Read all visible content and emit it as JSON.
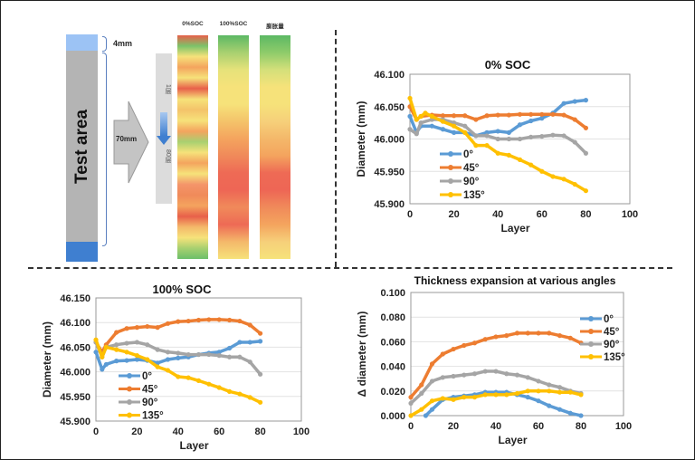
{
  "schematic": {
    "test_area_label": "Test area",
    "top_dim": "4mm",
    "length_dim": "70mm",
    "layer_start": "1层",
    "layer_end": "80层",
    "heat_strips": [
      {
        "label": "0%SOC",
        "colors": [
          "#e8604a",
          "#7cc36a",
          "#f6e27a",
          "#f4a45e",
          "#f6e27a",
          "#e8604a",
          "#f6e27a",
          "#f4c36a",
          "#f6e27a",
          "#f4a45e",
          "#a8d070",
          "#f6e27a",
          "#f4a45e",
          "#f6e27a",
          "#f4956a",
          "#f08a5a",
          "#f4a45e",
          "#e8604a",
          "#f4b86a",
          "#f6e27a",
          "#a8d070",
          "#6cbf6a"
        ]
      },
      {
        "label": "100%SOC",
        "colors": [
          "#5cb864",
          "#a8d070",
          "#e6e27a",
          "#f6e27a",
          "#f6e27a",
          "#f4c36a",
          "#f4a45e",
          "#f08a5a",
          "#ee6a55",
          "#ee6655",
          "#f08a5a",
          "#ee6a55",
          "#f4b86a",
          "#f6e27a"
        ]
      },
      {
        "label": "膨胀量",
        "colors": [
          "#5cb864",
          "#8ecb6a",
          "#d4e07a",
          "#f6e27a",
          "#f6e27a",
          "#f6d07a",
          "#f4b86a",
          "#f4a45e",
          "#ee6a55",
          "#ee6655",
          "#f08a5a",
          "#f4a45e",
          "#f6d07a",
          "#f6e27a"
        ]
      }
    ]
  },
  "chart_data": [
    {
      "type": "line",
      "title": "0% SOC",
      "xlabel": "Layer",
      "ylabel": "Diameter  (mm)",
      "xlim": [
        0,
        100
      ],
      "ylim": [
        45.9,
        46.1
      ],
      "xticks": [
        "0",
        "20",
        "40",
        "60",
        "80",
        "100"
      ],
      "yticks": [
        "45.900",
        "45.950",
        "46.000",
        "46.050",
        "46.100"
      ],
      "grid": true,
      "legend": "center-left",
      "series": [
        {
          "name": "0°",
          "color": "#5b9bd5",
          "x": [
            0,
            3,
            5,
            10,
            15,
            20,
            25,
            30,
            35,
            40,
            45,
            50,
            55,
            60,
            65,
            70,
            75,
            80
          ],
          "y": [
            46.035,
            46.01,
            46.02,
            46.02,
            46.015,
            46.01,
            46.01,
            46.005,
            46.01,
            46.012,
            46.01,
            46.022,
            46.028,
            46.032,
            46.04,
            46.055,
            46.058,
            46.06
          ]
        },
        {
          "name": "45°",
          "color": "#ed7d31",
          "x": [
            0,
            3,
            5,
            10,
            15,
            20,
            25,
            30,
            35,
            40,
            45,
            50,
            55,
            60,
            65,
            70,
            75,
            80
          ],
          "y": [
            46.05,
            46.03,
            46.035,
            46.037,
            46.036,
            46.036,
            46.036,
            46.03,
            46.036,
            46.037,
            46.037,
            46.038,
            46.038,
            46.038,
            46.038,
            46.037,
            46.03,
            46.017
          ]
        },
        {
          "name": "90°",
          "color": "#a5a5a5",
          "x": [
            0,
            3,
            5,
            10,
            15,
            20,
            25,
            30,
            35,
            40,
            45,
            50,
            55,
            60,
            65,
            70,
            75,
            80
          ],
          "y": [
            46.015,
            46.008,
            46.025,
            46.03,
            46.03,
            46.025,
            46.02,
            46.005,
            46.005,
            46.0,
            46.0,
            46.0,
            46.003,
            46.004,
            46.006,
            46.005,
            45.995,
            45.978
          ]
        },
        {
          "name": "135°",
          "color": "#ffc000",
          "x": [
            0,
            3,
            5,
            7,
            10,
            15,
            20,
            25,
            30,
            35,
            40,
            45,
            50,
            55,
            60,
            65,
            70,
            75,
            80
          ],
          "y": [
            46.063,
            46.03,
            46.035,
            46.04,
            46.035,
            46.027,
            46.02,
            46.01,
            45.99,
            45.99,
            45.978,
            45.975,
            45.968,
            45.96,
            45.95,
            45.942,
            45.938,
            45.93,
            45.92
          ]
        }
      ]
    },
    {
      "type": "line",
      "title": "100% SOC",
      "xlabel": "Layer",
      "ylabel": "Diameter  (mm)",
      "xlim": [
        0,
        100
      ],
      "ylim": [
        45.9,
        46.15
      ],
      "xticks": [
        "0",
        "20",
        "40",
        "60",
        "80",
        "100"
      ],
      "yticks": [
        "45.900",
        "45.950",
        "46.000",
        "46.050",
        "46.100",
        "46.150"
      ],
      "grid": true,
      "legend": "bottom-left",
      "series": [
        {
          "name": "0°",
          "color": "#5b9bd5",
          "x": [
            0,
            3,
            5,
            10,
            15,
            20,
            25,
            30,
            35,
            40,
            45,
            50,
            55,
            60,
            65,
            70,
            75,
            80
          ],
          "y": [
            46.04,
            46.005,
            46.015,
            46.022,
            46.023,
            46.025,
            46.023,
            46.018,
            46.025,
            46.028,
            46.03,
            46.035,
            46.038,
            46.04,
            46.048,
            46.06,
            46.06,
            46.062
          ]
        },
        {
          "name": "45°",
          "color": "#ed7d31",
          "x": [
            0,
            3,
            5,
            10,
            15,
            20,
            25,
            30,
            35,
            40,
            45,
            50,
            55,
            60,
            65,
            70,
            75,
            80
          ],
          "y": [
            46.06,
            46.04,
            46.055,
            46.08,
            46.088,
            46.09,
            46.092,
            46.09,
            46.098,
            46.102,
            46.103,
            46.105,
            46.106,
            46.106,
            46.105,
            46.103,
            46.095,
            46.078
          ]
        },
        {
          "name": "90°",
          "color": "#a5a5a5",
          "x": [
            0,
            3,
            5,
            10,
            15,
            20,
            25,
            30,
            35,
            40,
            45,
            50,
            55,
            60,
            65,
            70,
            75,
            80
          ],
          "y": [
            46.06,
            46.03,
            46.05,
            46.055,
            46.058,
            46.06,
            46.055,
            46.045,
            46.04,
            46.038,
            46.035,
            46.035,
            46.035,
            46.033,
            46.03,
            46.03,
            46.02,
            45.995
          ]
        },
        {
          "name": "135°",
          "color": "#ffc000",
          "x": [
            0,
            3,
            5,
            10,
            15,
            20,
            25,
            30,
            35,
            40,
            45,
            50,
            55,
            60,
            65,
            70,
            75,
            80
          ],
          "y": [
            46.065,
            46.03,
            46.05,
            46.045,
            46.04,
            46.033,
            46.025,
            46.01,
            46.003,
            45.99,
            45.988,
            45.982,
            45.975,
            45.968,
            45.96,
            45.955,
            45.948,
            45.938
          ]
        }
      ]
    },
    {
      "type": "line",
      "title": "Thickness expansion at various angles",
      "xlabel": "Layer",
      "ylabel": "Δ diameter  (mm)",
      "xlim": [
        0,
        100
      ],
      "ylim": [
        0,
        0.1
      ],
      "xticks": [
        "0",
        "20",
        "40",
        "60",
        "80",
        "100"
      ],
      "yticks": [
        "0.000",
        "0.020",
        "0.040",
        "0.060",
        "0.080",
        "0.100"
      ],
      "grid": true,
      "legend": "right",
      "series": [
        {
          "name": "0°",
          "color": "#5b9bd5",
          "x": [
            7,
            10,
            15,
            20,
            25,
            30,
            35,
            40,
            45,
            50,
            55,
            60,
            65,
            70,
            75,
            80
          ],
          "y": [
            0.0,
            0.005,
            0.013,
            0.015,
            0.016,
            0.017,
            0.019,
            0.019,
            0.019,
            0.017,
            0.015,
            0.012,
            0.008,
            0.005,
            0.002,
            0.0
          ]
        },
        {
          "name": "45°",
          "color": "#ed7d31",
          "x": [
            0,
            5,
            10,
            15,
            20,
            25,
            30,
            35,
            40,
            45,
            50,
            55,
            60,
            65,
            70,
            75,
            80
          ],
          "y": [
            0.015,
            0.025,
            0.042,
            0.05,
            0.054,
            0.057,
            0.059,
            0.062,
            0.064,
            0.065,
            0.067,
            0.067,
            0.067,
            0.067,
            0.065,
            0.063,
            0.059
          ]
        },
        {
          "name": "90°",
          "color": "#a5a5a5",
          "x": [
            0,
            5,
            10,
            15,
            20,
            25,
            30,
            35,
            40,
            45,
            50,
            55,
            60,
            65,
            70,
            75,
            80
          ],
          "y": [
            0.01,
            0.018,
            0.028,
            0.031,
            0.032,
            0.033,
            0.034,
            0.036,
            0.036,
            0.034,
            0.033,
            0.031,
            0.028,
            0.025,
            0.023,
            0.02,
            0.018
          ]
        },
        {
          "name": "135°",
          "color": "#ffc000",
          "x": [
            0,
            5,
            10,
            15,
            20,
            25,
            30,
            35,
            40,
            45,
            50,
            55,
            60,
            65,
            70,
            75,
            80
          ],
          "y": [
            0.0,
            0.005,
            0.012,
            0.014,
            0.013,
            0.015,
            0.015,
            0.017,
            0.017,
            0.017,
            0.018,
            0.02,
            0.02,
            0.02,
            0.019,
            0.019,
            0.017
          ]
        }
      ]
    }
  ]
}
